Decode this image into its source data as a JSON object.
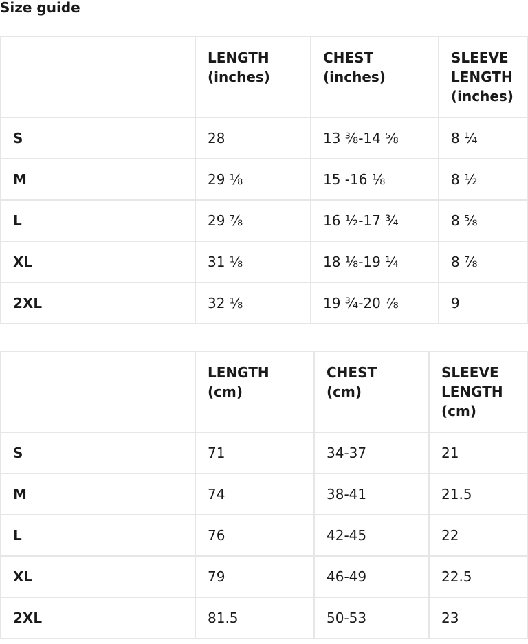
{
  "title": "Size guide",
  "tables": [
    {
      "headers": [
        "",
        "LENGTH\n(inches)",
        "CHEST\n(inches)",
        "SLEEVE\nLENGTH\n(inches)"
      ],
      "rows": [
        [
          "S",
          "28",
          "13 ⅜-14 ⅝",
          "8 ¼"
        ],
        [
          "M",
          "29 ⅛",
          "15 -16 ⅛",
          "8 ½"
        ],
        [
          "L",
          "29 ⅞",
          "16 ½-17 ¾",
          "8 ⅝"
        ],
        [
          "XL",
          "31 ⅛",
          "18 ⅛-19 ¼",
          "8 ⅞"
        ],
        [
          "2XL",
          "32 ⅛",
          "19 ¾-20 ⅞",
          "9"
        ]
      ]
    },
    {
      "headers": [
        "",
        "LENGTH\n(cm)",
        "CHEST\n(cm)",
        "SLEEVE\nLENGTH\n(cm)"
      ],
      "rows": [
        [
          "S",
          "71",
          "34-37",
          "21"
        ],
        [
          "M",
          "74",
          "38-41",
          "21.5"
        ],
        [
          "L",
          "76",
          "42-45",
          "22"
        ],
        [
          "XL",
          "79",
          "46-49",
          "22.5"
        ],
        [
          "2XL",
          "81.5",
          "50-53",
          "23"
        ]
      ]
    }
  ]
}
